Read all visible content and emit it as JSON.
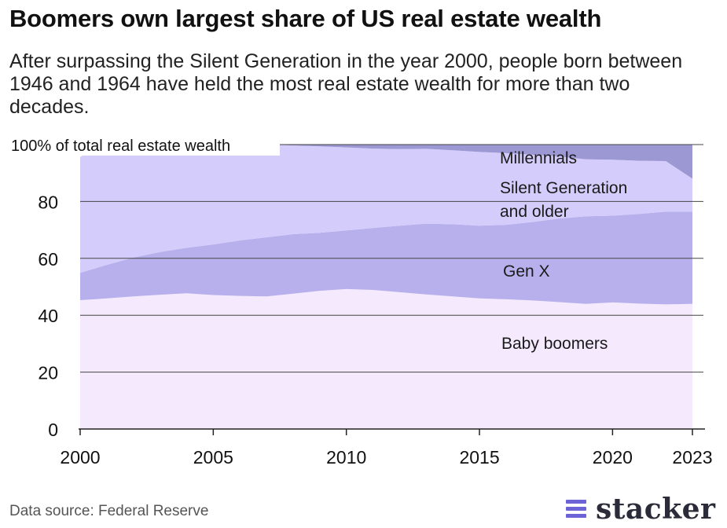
{
  "title": "Boomers own largest share of US real estate wealth",
  "subtitle": "After surpassing the Silent Generation in the year 2000, people born between 1946 and 1964 have held the most real estate wealth for more than two decades.",
  "source": "Data source: Federal Reserve",
  "brand": "stacker",
  "colors": {
    "millennials": "#9b98d3",
    "silent": "#d4ccfb",
    "genx": "#b7b0ec",
    "boomers": "#f4e9fd",
    "grid": "#444444",
    "logo": "#6b63d6"
  },
  "chart_data": {
    "type": "area",
    "stacked": true,
    "ylabel": "100% of total real estate wealth",
    "ylim": [
      0,
      100
    ],
    "xlim": [
      2000,
      2023
    ],
    "x": [
      2000,
      2001,
      2002,
      2003,
      2004,
      2005,
      2006,
      2007,
      2008,
      2009,
      2010,
      2011,
      2012,
      2013,
      2014,
      2015,
      2016,
      2017,
      2018,
      2019,
      2020,
      2021,
      2022,
      2023
    ],
    "x_ticks": [
      "2000",
      "2005",
      "2010",
      "2015",
      "2020",
      "2023"
    ],
    "x_tick_values": [
      2000,
      2005,
      2010,
      2015,
      2020,
      2023
    ],
    "y_ticks": [
      "0",
      "20",
      "40",
      "60",
      "80"
    ],
    "y_tick_values": [
      0,
      20,
      40,
      60,
      80
    ],
    "series": [
      {
        "name": "Baby boomers",
        "key": "boomers",
        "values": [
          45.3,
          45.9,
          46.6,
          47.2,
          47.7,
          47.1,
          46.8,
          46.6,
          47.6,
          48.6,
          49.2,
          48.9,
          48.1,
          47.3,
          46.6,
          45.9,
          45.6,
          45.2,
          44.6,
          44.0,
          44.5,
          44.1,
          43.8,
          44.0
        ]
      },
      {
        "name": "Gen X",
        "key": "genx",
        "values": [
          9.6,
          11.8,
          13.7,
          15.0,
          16.0,
          17.8,
          19.5,
          20.8,
          20.9,
          20.4,
          20.6,
          21.8,
          23.4,
          24.9,
          25.4,
          25.6,
          26.2,
          27.6,
          29.4,
          30.8,
          30.5,
          31.5,
          32.6,
          32.4
        ]
      },
      {
        "name": "Silent Generation and older",
        "key": "silent",
        "values": [
          40.8,
          42.3,
          39.7,
          37.8,
          36.3,
          35.1,
          33.7,
          32.6,
          31.2,
          30.4,
          29.2,
          27.9,
          26.9,
          26.3,
          26.0,
          25.9,
          25.2,
          23.6,
          21.8,
          20.0,
          19.7,
          18.7,
          17.8,
          11.6
        ]
      },
      {
        "name": "Millennials",
        "key": "millennials",
        "values": [
          0,
          0,
          0,
          0,
          0,
          0,
          0,
          0,
          0.3,
          0.6,
          1.0,
          1.4,
          1.6,
          1.5,
          2.0,
          2.6,
          3.0,
          3.6,
          4.2,
          5.2,
          5.3,
          5.7,
          5.8,
          12.0
        ]
      }
    ],
    "series_labels": [
      {
        "key": "millennials",
        "lines": [
          "Millennials"
        ]
      },
      {
        "key": "silent",
        "lines": [
          "Silent Generation",
          "and older"
        ]
      },
      {
        "key": "genx",
        "lines": [
          "Gen X"
        ]
      },
      {
        "key": "boomers",
        "lines": [
          "Baby boomers"
        ]
      }
    ],
    "grid": true,
    "legend": "inline labels"
  }
}
